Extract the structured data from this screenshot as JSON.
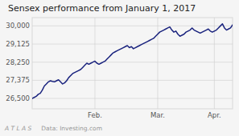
{
  "chart_data": {
    "type": "line",
    "title": "Sensex performance from January 1, 2017",
    "annotations": [
      "A T L A S",
      "Data: Investing.com"
    ],
    "color": "#1a237e",
    "grid": true,
    "categories": [
      null,
      null,
      null,
      null,
      null,
      null,
      null,
      null,
      null,
      null,
      null,
      null,
      null,
      null,
      null,
      null,
      null,
      null,
      null,
      null,
      null,
      null,
      null,
      null,
      null,
      null,
      null,
      null,
      null,
      null,
      null,
      "Feb.",
      null,
      null,
      null,
      null,
      null,
      null,
      null,
      null,
      null,
      null,
      null,
      null,
      null,
      null,
      null,
      null,
      null,
      null,
      null,
      null,
      null,
      null,
      null,
      null,
      null,
      null,
      null,
      null,
      null,
      null,
      "Mar.",
      null,
      null,
      null,
      null,
      null,
      null,
      null,
      null,
      null,
      null,
      null,
      null,
      null,
      null,
      null,
      null,
      null,
      null,
      null,
      null,
      null,
      null,
      null,
      null,
      null,
      null,
      null,
      "Apr.",
      null,
      null,
      null,
      null,
      null,
      null,
      null,
      null,
      null
    ],
    "values": [
      26500,
      26550,
      26600,
      26700,
      26750,
      26900,
      27100,
      27200,
      27300,
      27350,
      27320,
      27300,
      27350,
      27400,
      27300,
      27200,
      27250,
      27350,
      27500,
      27600,
      27700,
      27750,
      27800,
      27850,
      27900,
      28000,
      28100,
      28200,
      28150,
      28200,
      28250,
      28300,
      28200,
      28150,
      28200,
      28250,
      28300,
      28400,
      28500,
      28600,
      28700,
      28750,
      28800,
      28850,
      28900,
      28950,
      29000,
      29050,
      28950,
      29000,
      28900,
      28950,
      29000,
      29050,
      29100,
      29150,
      29200,
      29250,
      29300,
      29350,
      29400,
      29500,
      29600,
      29700,
      29750,
      29800,
      29850,
      29900,
      29950,
      29800,
      29700,
      29750,
      29600,
      29500,
      29550,
      29600,
      29700,
      29750,
      29800,
      29900,
      29800,
      29750,
      29700,
      29650,
      29700,
      29750,
      29800,
      29850,
      29750,
      29700,
      29750,
      29800,
      29900,
      30000,
      30100,
      29900,
      29800,
      29850,
      29900,
      30050
    ],
    "ylim": [
      26000,
      30400
    ],
    "yticks": [
      {
        "value": 26500,
        "label": "26,500"
      },
      {
        "value": 27375,
        "label": "27,375"
      },
      {
        "value": 28250,
        "label": "28,250"
      },
      {
        "value": 29125,
        "label": "29,125"
      },
      {
        "value": 30000,
        "label": "30,000"
      }
    ]
  }
}
